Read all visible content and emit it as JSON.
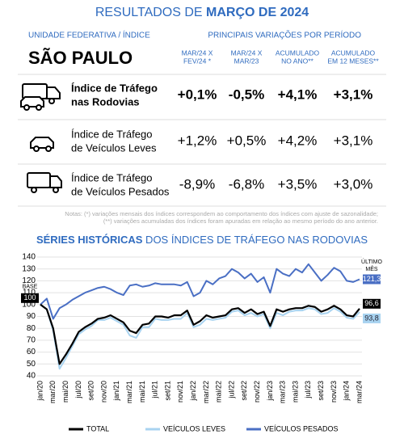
{
  "header": {
    "title_prefix": "RESULTADOS DE ",
    "title_highlight": "MARÇO DE 2024"
  },
  "table": {
    "left_heading": "UNIDADE FEDERATIVA / ÍNDICE",
    "right_heading": "PRINCIPAIS VARIAÇÕES POR PERÍODO",
    "state": "SÃO PAULO",
    "columns": [
      [
        "MAR/24 X",
        "FEV/24 *"
      ],
      [
        "MAR/24 X",
        "MAR/23"
      ],
      [
        "ACUMULADO",
        "NO ANO**"
      ],
      [
        "ACUMULADO",
        "EM 12 MESES**"
      ]
    ],
    "rows": [
      {
        "label": [
          "Índice de Tráfego",
          "nas Rodovias"
        ],
        "values": [
          "+0,1%",
          "-0,5%",
          "+4,1%",
          "+3,1%"
        ]
      },
      {
        "label": [
          "Índice de Tráfego",
          "de Veículos Leves"
        ],
        "values": [
          "+1,2%",
          "+0,5%",
          "+4,2%",
          "+3,1%"
        ]
      },
      {
        "label": [
          "Índice de Tráfego",
          "de Veículos Pesados"
        ],
        "values": [
          "-8,9%",
          "-6,8%",
          "+3,5%",
          "+3,0%"
        ]
      }
    ]
  },
  "notes": [
    "Notas: (*) variações mensais dos índices correspondem ao comportamento dos índices com ajuste de sazonalidade;",
    "(**) variações acumuladas dos índices  foram apuradas em relação ao mesmo período do ano anterior."
  ],
  "chart_data": {
    "type": "line",
    "title_highlight": "SÉRIES HISTÓRICAS",
    "title_rest": " DOS ÍNDICES DE TRÁFEGO NAS RODOVIAS",
    "base_label": "BASE",
    "last_month_label": [
      "ÚLTIMO",
      "MÊS"
    ],
    "categories": [
      "jan/20",
      null,
      "mar/20",
      null,
      "mai/20",
      null,
      "jul/20",
      null,
      "set/20",
      null,
      "nov/20",
      null,
      "jan/21",
      null,
      "mar/21",
      null,
      "mai/21",
      null,
      "jul/21",
      null,
      "set/21",
      null,
      "nov/21",
      null,
      "jan/22",
      null,
      "mar/22",
      null,
      "mai/22",
      null,
      "jul/22",
      null,
      "set/22",
      null,
      "nov/22",
      null,
      "jan/23",
      null,
      "mar/23",
      null,
      "mai/23",
      null,
      "jul/23",
      null,
      "set/23",
      null,
      "nov/23",
      null,
      "jan/24",
      null,
      "mar/24"
    ],
    "ylim": [
      40,
      140
    ],
    "yticks": [
      40,
      50,
      60,
      70,
      80,
      90,
      100,
      110,
      120,
      130,
      140
    ],
    "grid": true,
    "series": [
      {
        "name": "TOTAL",
        "color": "#000000",
        "values": [
          100,
          96,
          80,
          50,
          58,
          67,
          77,
          81,
          84,
          88,
          89,
          91,
          88,
          85,
          78,
          76,
          83,
          84,
          90,
          90,
          89,
          91,
          91,
          95,
          83,
          86,
          91,
          89,
          90,
          91,
          96,
          97,
          93,
          96,
          92,
          94,
          82,
          96,
          94,
          96,
          97,
          97,
          99,
          98,
          94,
          96,
          99,
          96,
          91,
          90,
          96.6
        ],
        "value_labels": [
          "100",
          null,
          null,
          null,
          null,
          null,
          null,
          null,
          null,
          null,
          null,
          null,
          null,
          null,
          null,
          null,
          null,
          null,
          null,
          null,
          null,
          null,
          null,
          null,
          null,
          null,
          null,
          null,
          null,
          null,
          null,
          null,
          null,
          null,
          null,
          null,
          null,
          null,
          null,
          null,
          null,
          null,
          null,
          null,
          null,
          null,
          null,
          null,
          null,
          null,
          "96,6"
        ]
      },
      {
        "name": "VEÍCULOS LEVES",
        "color": "#a8d3f0",
        "values": [
          100,
          96,
          78,
          46,
          55,
          65,
          75,
          79,
          82,
          87,
          87,
          89,
          86,
          83,
          74,
          72,
          81,
          81,
          88,
          87,
          87,
          88,
          88,
          93,
          81,
          83,
          88,
          87,
          88,
          89,
          94,
          95,
          91,
          93,
          90,
          92,
          80,
          93,
          91,
          94,
          95,
          95,
          97,
          96,
          92,
          93,
          97,
          94,
          89,
          88,
          93.8
        ],
        "value_labels": [
          null,
          null,
          null,
          null,
          null,
          null,
          null,
          null,
          null,
          null,
          null,
          null,
          null,
          null,
          null,
          null,
          null,
          null,
          null,
          null,
          null,
          null,
          null,
          null,
          null,
          null,
          null,
          null,
          null,
          null,
          null,
          null,
          null,
          null,
          null,
          null,
          null,
          null,
          null,
          null,
          null,
          null,
          null,
          null,
          null,
          null,
          null,
          null,
          null,
          null,
          "93,8"
        ]
      },
      {
        "name": "VEÍCULOS PESADOS",
        "color": "#4a6fc4",
        "values": [
          100,
          105,
          88,
          97,
          100,
          104,
          107,
          110,
          112,
          114,
          115,
          113,
          110,
          108,
          116,
          117,
          115,
          116,
          118,
          117,
          117,
          117,
          116,
          119,
          107,
          110,
          120,
          117,
          122,
          124,
          130,
          127,
          122,
          126,
          119,
          123,
          110,
          130,
          126,
          124,
          130,
          127,
          134,
          127,
          120,
          125,
          131,
          128,
          120,
          119,
          121.3
        ],
        "value_labels": [
          null,
          null,
          null,
          null,
          null,
          null,
          null,
          null,
          null,
          null,
          null,
          null,
          null,
          null,
          null,
          null,
          null,
          null,
          null,
          null,
          null,
          null,
          null,
          null,
          null,
          null,
          null,
          null,
          null,
          null,
          null,
          null,
          null,
          null,
          null,
          null,
          null,
          null,
          null,
          null,
          null,
          null,
          null,
          null,
          null,
          null,
          null,
          null,
          null,
          null,
          "121,3"
        ]
      }
    ]
  }
}
